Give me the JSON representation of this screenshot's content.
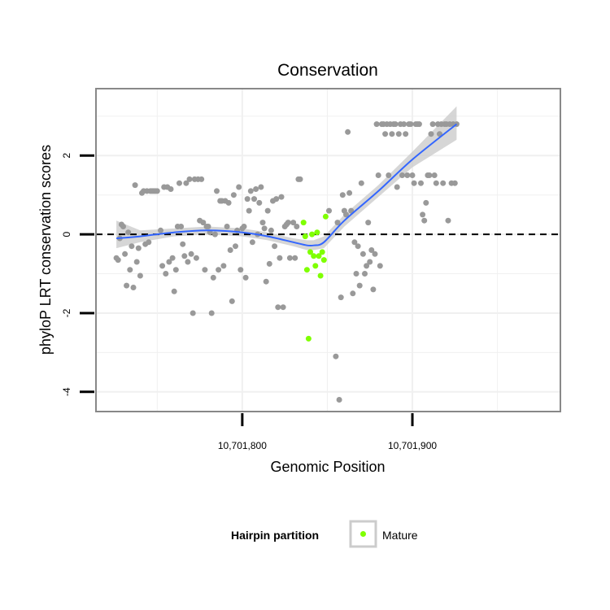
{
  "chart_data": {
    "type": "scatter",
    "title": "Conservation",
    "xlabel": "Genomic Position",
    "ylabel": "phyloP LRT conservation scores",
    "xlim": [
      10701714,
      10701987
    ],
    "ylim": [
      -4.5,
      3.7
    ],
    "x_ticks": [
      {
        "value": 10701800,
        "label": "10,701,800"
      },
      {
        "value": 10701900,
        "label": "10,701,900"
      }
    ],
    "y_ticks": [
      {
        "value": 2,
        "label": "2"
      },
      {
        "value": 0,
        "label": "0"
      },
      {
        "value": -2,
        "label": "-2"
      },
      {
        "value": -4,
        "label": "-4"
      }
    ],
    "grid": true,
    "reference_line": {
      "y": 0,
      "style": "dashed"
    },
    "legend": {
      "title": "Hairpin partition",
      "position": "bottom",
      "entries": [
        {
          "label": "Mature",
          "color": "#7fff00"
        }
      ]
    },
    "colors": {
      "points": "#999999",
      "mature": "#7fff00",
      "smooth": "#3366ff",
      "band": "#cccccc",
      "panel_border": "#888888"
    },
    "series": [
      {
        "points": [
          [
            10701726,
            -0.6
          ],
          [
            10701727,
            -0.65
          ],
          [
            10701728,
            -0.1
          ],
          [
            10701729,
            0.25
          ],
          [
            10701730,
            0.2
          ],
          [
            10701731,
            -0.5
          ],
          [
            10701732,
            -1.3
          ],
          [
            10701733,
            0.05
          ],
          [
            10701734,
            -0.9
          ],
          [
            10701735,
            -0.3
          ],
          [
            10701736,
            -1.35
          ],
          [
            10701737,
            1.25
          ],
          [
            10701738,
            -0.7
          ],
          [
            10701739,
            -0.35
          ],
          [
            10701740,
            -1.05
          ],
          [
            10701741,
            1.05
          ],
          [
            10701742,
            1.1
          ],
          [
            10701743,
            -0.25
          ],
          [
            10701744,
            1.1
          ],
          [
            10701745,
            -0.2
          ],
          [
            10701746,
            1.1
          ],
          [
            10701747,
            1.1
          ],
          [
            10701748,
            1.1
          ],
          [
            10701749,
            1.1
          ],
          [
            10701750,
            1.1
          ],
          [
            10701752,
            0.1
          ],
          [
            10701753,
            -0.8
          ],
          [
            10701754,
            1.2
          ],
          [
            10701755,
            -1.0
          ],
          [
            10701756,
            1.2
          ],
          [
            10701757,
            -0.7
          ],
          [
            10701758,
            1.15
          ],
          [
            10701759,
            -0.6
          ],
          [
            10701760,
            -1.45
          ],
          [
            10701761,
            -0.9
          ],
          [
            10701762,
            0.2
          ],
          [
            10701763,
            1.3
          ],
          [
            10701764,
            0.2
          ],
          [
            10701765,
            -0.25
          ],
          [
            10701766,
            -0.55
          ],
          [
            10701767,
            1.3
          ],
          [
            10701768,
            -0.7
          ],
          [
            10701769,
            1.4
          ],
          [
            10701770,
            -0.5
          ],
          [
            10701771,
            -2.0
          ],
          [
            10701772,
            1.4
          ],
          [
            10701773,
            -0.6
          ],
          [
            10701774,
            1.4
          ],
          [
            10701775,
            0.35
          ],
          [
            10701776,
            1.4
          ],
          [
            10701777,
            0.3
          ],
          [
            10701778,
            -0.9
          ],
          [
            10701779,
            0.2
          ],
          [
            10701780,
            0.2
          ],
          [
            10701781,
            0.05
          ],
          [
            10701782,
            -2.0
          ],
          [
            10701783,
            -1.1
          ],
          [
            10701784,
            0.0
          ],
          [
            10701785,
            1.1
          ],
          [
            10701786,
            -0.9
          ],
          [
            10701787,
            0.85
          ],
          [
            10701788,
            0.85
          ],
          [
            10701789,
            -0.8
          ],
          [
            10701790,
            0.85
          ],
          [
            10701791,
            0.2
          ],
          [
            10701792,
            0.8
          ],
          [
            10701793,
            -0.4
          ],
          [
            10701794,
            -1.7
          ],
          [
            10701795,
            1.0
          ],
          [
            10701796,
            -0.3
          ],
          [
            10701797,
            0.1
          ],
          [
            10701798,
            1.2
          ],
          [
            10701799,
            -0.9
          ],
          [
            10701800,
            0.15
          ],
          [
            10701801,
            0.2
          ],
          [
            10701802,
            -1.1
          ],
          [
            10701803,
            0.9
          ],
          [
            10701804,
            0.6
          ],
          [
            10701805,
            1.1
          ],
          [
            10701806,
            -0.2
          ],
          [
            10701807,
            0.9
          ],
          [
            10701808,
            1.15
          ],
          [
            10701809,
            0.0
          ],
          [
            10701810,
            0.8
          ],
          [
            10701811,
            1.2
          ],
          [
            10701812,
            0.3
          ],
          [
            10701813,
            0.15
          ],
          [
            10701814,
            -1.2
          ],
          [
            10701815,
            0.6
          ],
          [
            10701816,
            -0.75
          ],
          [
            10701817,
            0.1
          ],
          [
            10701818,
            0.85
          ],
          [
            10701819,
            -0.3
          ],
          [
            10701820,
            0.9
          ],
          [
            10701821,
            -1.85
          ],
          [
            10701822,
            -0.6
          ],
          [
            10701823,
            0.95
          ],
          [
            10701824,
            -1.85
          ],
          [
            10701825,
            0.2
          ],
          [
            10701826,
            0.25
          ],
          [
            10701827,
            0.3
          ],
          [
            10701828,
            -0.6
          ],
          [
            10701830,
            0.3
          ],
          [
            10701831,
            -0.6
          ],
          [
            10701832,
            0.2
          ],
          [
            10701833,
            1.4
          ],
          [
            10701834,
            1.4
          ],
          [
            10701851,
            0.6
          ],
          [
            10701855,
            -3.1
          ],
          [
            10701856,
            0.3
          ],
          [
            10701857,
            -4.2
          ],
          [
            10701858,
            -1.6
          ],
          [
            10701859,
            1.0
          ],
          [
            10701860,
            0.6
          ],
          [
            10701861,
            0.5
          ],
          [
            10701862,
            2.6
          ],
          [
            10701863,
            1.05
          ],
          [
            10701864,
            0.6
          ],
          [
            10701865,
            -1.5
          ],
          [
            10701866,
            -0.2
          ],
          [
            10701867,
            -1.0
          ],
          [
            10701868,
            -0.3
          ],
          [
            10701869,
            -1.3
          ],
          [
            10701870,
            1.3
          ],
          [
            10701871,
            -0.5
          ],
          [
            10701872,
            -1.0
          ],
          [
            10701873,
            -0.8
          ],
          [
            10701874,
            0.3
          ],
          [
            10701875,
            -0.7
          ],
          [
            10701876,
            -0.4
          ],
          [
            10701877,
            -1.4
          ],
          [
            10701878,
            -0.5
          ],
          [
            10701879,
            2.8
          ],
          [
            10701880,
            1.5
          ],
          [
            10701881,
            -0.8
          ],
          [
            10701882,
            2.8
          ],
          [
            10701883,
            2.8
          ],
          [
            10701884,
            2.55
          ],
          [
            10701885,
            2.8
          ],
          [
            10701886,
            1.5
          ],
          [
            10701887,
            2.8
          ],
          [
            10701888,
            2.55
          ],
          [
            10701889,
            2.8
          ],
          [
            10701890,
            2.8
          ],
          [
            10701891,
            1.2
          ],
          [
            10701892,
            2.55
          ],
          [
            10701893,
            2.8
          ],
          [
            10701894,
            1.5
          ],
          [
            10701895,
            2.8
          ],
          [
            10701896,
            2.55
          ],
          [
            10701897,
            1.5
          ],
          [
            10701898,
            2.8
          ],
          [
            10701899,
            2.8
          ],
          [
            10701900,
            1.5
          ],
          [
            10701901,
            1.3
          ],
          [
            10701902,
            2.8
          ],
          [
            10701903,
            2.8
          ],
          [
            10701904,
            2.8
          ],
          [
            10701905,
            1.3
          ],
          [
            10701906,
            0.5
          ],
          [
            10701907,
            0.35
          ],
          [
            10701908,
            0.8
          ],
          [
            10701909,
            1.5
          ],
          [
            10701910,
            1.5
          ],
          [
            10701911,
            2.55
          ],
          [
            10701912,
            2.8
          ],
          [
            10701913,
            1.5
          ],
          [
            10701914,
            1.3
          ],
          [
            10701915,
            2.8
          ],
          [
            10701916,
            2.55
          ],
          [
            10701917,
            2.8
          ],
          [
            10701918,
            1.3
          ],
          [
            10701919,
            2.8
          ],
          [
            10701920,
            2.8
          ],
          [
            10701921,
            0.35
          ],
          [
            10701922,
            2.8
          ],
          [
            10701923,
            1.3
          ],
          [
            10701924,
            2.8
          ],
          [
            10701925,
            1.3
          ],
          [
            10701926,
            2.8
          ]
        ]
      },
      {
        "name": "Mature",
        "points": [
          [
            10701836,
            0.3
          ],
          [
            10701837,
            -0.05
          ],
          [
            10701838,
            -0.9
          ],
          [
            10701839,
            -2.65
          ],
          [
            10701840,
            -0.45
          ],
          [
            10701841,
            0.0
          ],
          [
            10701842,
            -0.55
          ],
          [
            10701843,
            -0.8
          ],
          [
            10701844,
            0.05
          ],
          [
            10701845,
            -0.55
          ],
          [
            10701846,
            -1.05
          ],
          [
            10701847,
            -0.45
          ],
          [
            10701848,
            -0.65
          ],
          [
            10701849,
            0.45
          ]
        ]
      }
    ],
    "smooth": {
      "x": [
        10701726,
        10701740,
        10701760,
        10701780,
        10701800,
        10701815,
        10701830,
        10701838,
        10701842,
        10701848,
        10701860,
        10701880,
        10701900,
        10701926
      ],
      "y": [
        -0.1,
        -0.05,
        0.05,
        0.1,
        0.05,
        -0.05,
        -0.2,
        -0.28,
        -0.28,
        -0.2,
        0.35,
        1.1,
        1.9,
        2.8
      ],
      "lower": [
        -0.35,
        -0.2,
        -0.05,
        0.0,
        -0.05,
        -0.15,
        -0.3,
        -0.4,
        -0.4,
        -0.35,
        0.2,
        0.95,
        1.7,
        2.4
      ],
      "upper": [
        0.35,
        0.1,
        0.15,
        0.2,
        0.15,
        0.05,
        -0.1,
        -0.15,
        -0.15,
        -0.05,
        0.5,
        1.25,
        2.1,
        3.25
      ]
    }
  }
}
